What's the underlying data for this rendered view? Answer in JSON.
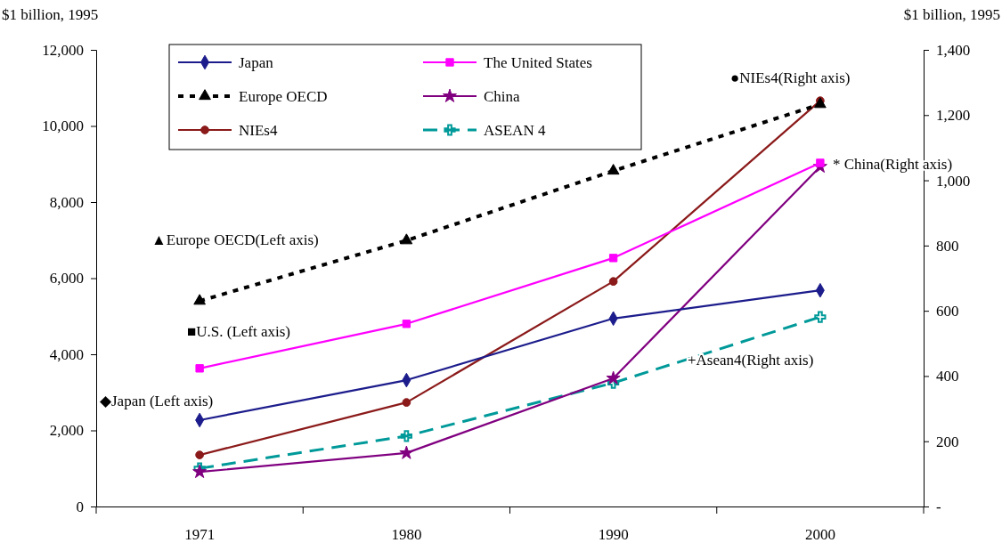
{
  "chart_data": {
    "type": "line",
    "ylabel": "$1 billion, 1995",
    "y2label": "$1 billion, 1995",
    "categories": [
      "1971",
      "1980",
      "1990",
      "2000"
    ],
    "ylim": [
      0,
      12000
    ],
    "yticks": [
      0,
      {
        "value": 2000,
        "label": "2,000"
      },
      {
        "value": 4000,
        "label": "4,000"
      },
      {
        "value": 6000,
        "label": "6,000"
      },
      {
        "value": 8000,
        "label": "8,000"
      },
      {
        "value": 10000,
        "label": "10,000"
      },
      {
        "value": 12000,
        "label": "12,000"
      }
    ],
    "y2lim": [
      0,
      1400
    ],
    "y2ticks": [
      {
        "value": 0,
        "label": "-"
      },
      200,
      400,
      600,
      800,
      {
        "value": 1000,
        "label": "1,000"
      },
      {
        "value": 1200,
        "label": "1,200"
      },
      {
        "value": 1400,
        "label": "1,400"
      }
    ],
    "series": [
      {
        "name": "Japan",
        "color": "#1c1c8c",
        "values": [
          2270,
          3320,
          4940,
          5680
        ],
        "marker": "diamond",
        "line_style": "solid"
      },
      {
        "name": "The United States",
        "color": "#ff00ff",
        "values": [
          3630,
          4800,
          6530,
          9030
        ],
        "marker": "square",
        "line_style": "solid"
      },
      {
        "name": "Europe OECD",
        "color": "#000000",
        "values": [
          5400,
          6990,
          8820,
          10570
        ],
        "marker": "triangle",
        "line_style": "dotted"
      },
      {
        "name": "China",
        "color": "#800080",
        "values": [
          106,
          164,
          393,
          1042
        ],
        "marker": "star",
        "line_style": "solid",
        "axis": "y2"
      },
      {
        "name": "NIEs4",
        "color": "#8b1a1a",
        "values": [
          158,
          319,
          690,
          1244
        ],
        "marker": "circle",
        "line_style": "solid",
        "axis": "y2"
      },
      {
        "name": "ASEAN 4",
        "color": "#009999",
        "values": [
          117,
          216,
          379,
          581
        ],
        "marker": "cross",
        "line_style": "dashed",
        "axis": "y2"
      }
    ],
    "annotations": [
      "▲Europe OECD(Left axis)",
      "■U.S. (Left axis)",
      "◆Japan (Left axis)",
      "●NIEs4(Right axis)",
      "* China(Right axis)",
      "+Asean4(Right axis)"
    ],
    "legend": "top",
    "grid": false
  }
}
